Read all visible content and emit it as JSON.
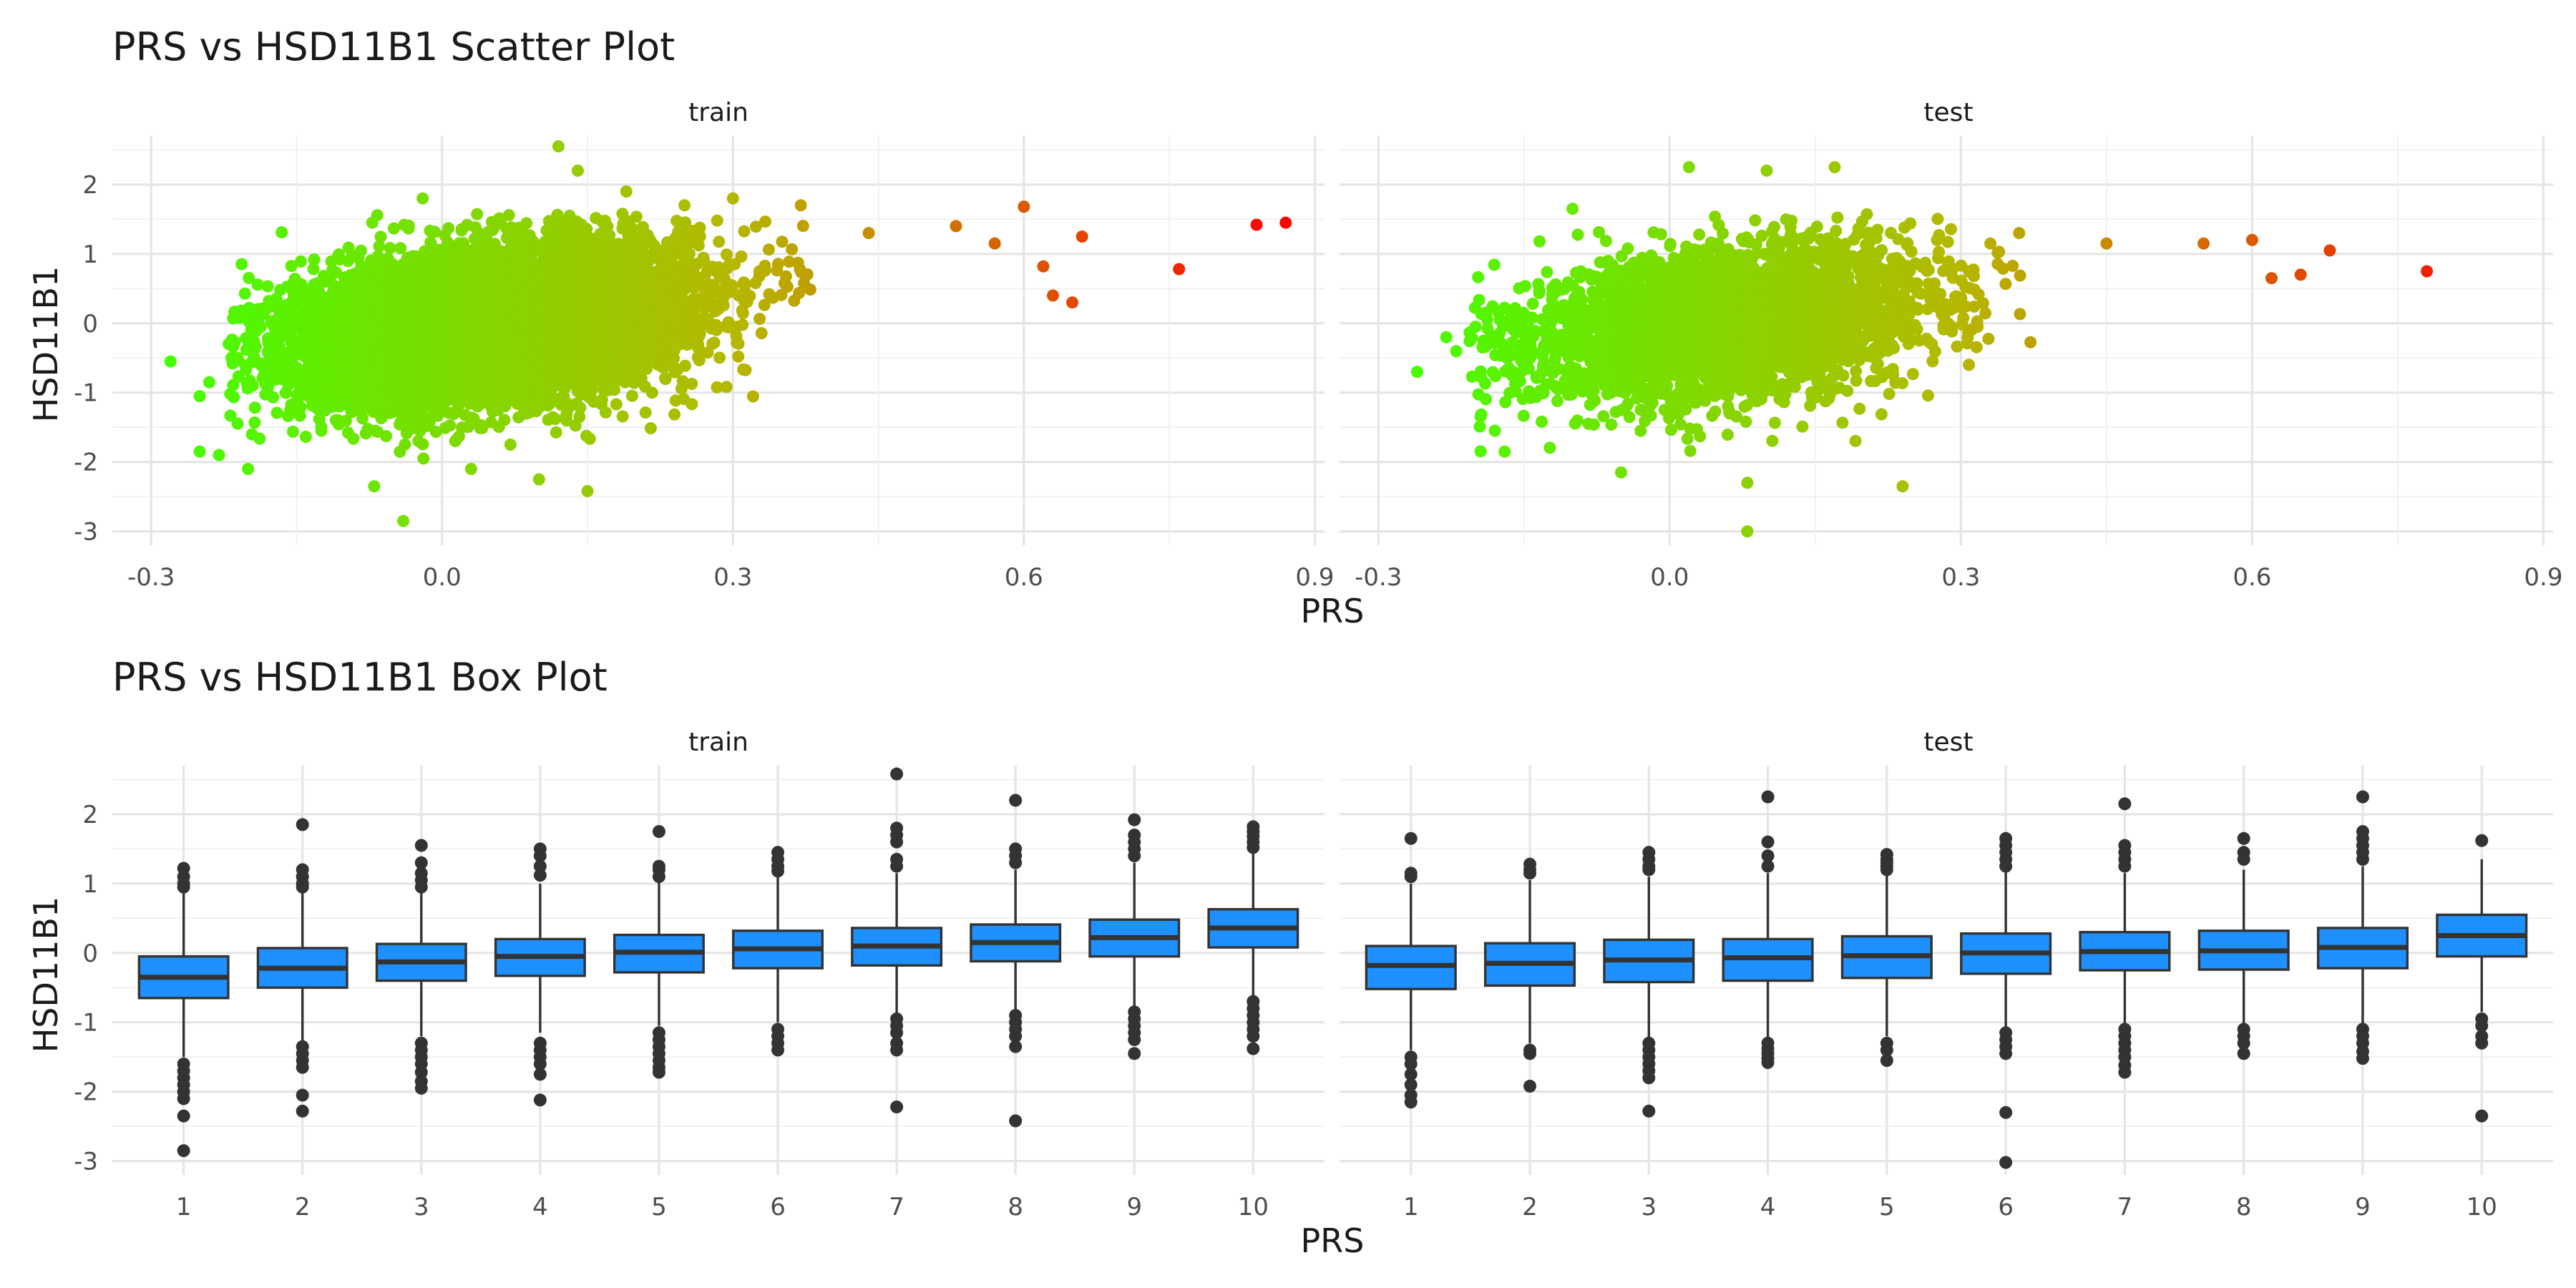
{
  "scatter": {
    "title": "PRS vs HSD11B1 Scatter Plot",
    "xlabel": "PRS",
    "ylabel": "HSD11B1",
    "facets": [
      "train",
      "test"
    ],
    "x_ticks": [
      "-0.3",
      "0.0",
      "0.3",
      "0.6",
      "0.9"
    ],
    "y_ticks": [
      "2",
      "1",
      "0",
      "-1",
      "-2",
      "-3"
    ]
  },
  "box": {
    "title": "PRS vs HSD11B1 Box Plot",
    "xlabel": "PRS",
    "ylabel": "HSD11B1",
    "facets": [
      "train",
      "test"
    ],
    "x_ticks": [
      "1",
      "2",
      "3",
      "4",
      "5",
      "6",
      "7",
      "8",
      "9",
      "10"
    ],
    "y_ticks": [
      "2",
      "1",
      "0",
      "-1",
      "-2",
      "-3"
    ]
  },
  "colors": {
    "low": "#44ff00",
    "mid": "#b5b800",
    "high": "#ff0000",
    "box_fill": "#1e90ff",
    "ink": "#333333"
  },
  "chart_data": [
    {
      "type": "scatter",
      "title": "PRS vs HSD11B1 Scatter Plot",
      "xlabel": "PRS",
      "ylabel": "HSD11B1",
      "xlim": [
        -0.34,
        0.91
      ],
      "ylim": [
        -3.2,
        2.7
      ],
      "color_by": "x",
      "facets": [
        {
          "name": "train",
          "cloud": {
            "x_center": 0.05,
            "x_sd": 0.1,
            "slope": 1.6,
            "resid_sd": 0.52,
            "n": 9000
          },
          "points": [
            [
              -0.28,
              -0.55
            ],
            [
              -0.25,
              -1.05
            ],
            [
              -0.25,
              -1.85
            ],
            [
              -0.23,
              -1.9
            ],
            [
              -0.24,
              -0.85
            ],
            [
              -0.2,
              -2.1
            ],
            [
              -0.22,
              -0.3
            ],
            [
              -0.07,
              -2.35
            ],
            [
              -0.04,
              -2.85
            ],
            [
              -0.02,
              1.8
            ],
            [
              0.03,
              -2.1
            ],
            [
              0.1,
              -2.25
            ],
            [
              0.12,
              2.55
            ],
            [
              0.14,
              2.2
            ],
            [
              0.15,
              -2.42
            ],
            [
              0.19,
              1.9
            ],
            [
              0.25,
              1.7
            ],
            [
              0.3,
              1.8
            ],
            [
              0.37,
              1.7
            ],
            [
              0.44,
              1.3
            ],
            [
              0.53,
              1.4
            ],
            [
              0.57,
              1.15
            ],
            [
              0.6,
              1.68
            ],
            [
              0.62,
              0.82
            ],
            [
              0.63,
              0.4
            ],
            [
              0.65,
              0.3
            ],
            [
              0.66,
              1.25
            ],
            [
              0.76,
              0.78
            ],
            [
              0.84,
              1.42
            ],
            [
              0.87,
              1.45
            ]
          ]
        },
        {
          "name": "test",
          "cloud": {
            "x_center": 0.06,
            "x_sd": 0.1,
            "slope": 1.6,
            "resid_sd": 0.52,
            "n": 3600
          },
          "points": [
            [
              -0.26,
              -0.7
            ],
            [
              -0.23,
              -0.2
            ],
            [
              -0.2,
              -0.05
            ],
            [
              -0.18,
              -1.55
            ],
            [
              -0.17,
              -1.85
            ],
            [
              -0.1,
              1.65
            ],
            [
              -0.05,
              -2.15
            ],
            [
              0.02,
              2.25
            ],
            [
              0.08,
              -2.3
            ],
            [
              0.08,
              -3.0
            ],
            [
              0.1,
              2.2
            ],
            [
              0.17,
              2.25
            ],
            [
              0.24,
              -2.35
            ],
            [
              0.36,
              1.3
            ],
            [
              0.45,
              1.15
            ],
            [
              0.55,
              1.15
            ],
            [
              0.6,
              1.2
            ],
            [
              0.62,
              0.65
            ],
            [
              0.65,
              0.7
            ],
            [
              0.68,
              1.05
            ],
            [
              0.78,
              0.75
            ]
          ]
        }
      ]
    },
    {
      "type": "box",
      "title": "PRS vs HSD11B1 Box Plot",
      "xlabel": "PRS",
      "ylabel": "HSD11B1",
      "categories": [
        "1",
        "2",
        "3",
        "4",
        "5",
        "6",
        "7",
        "8",
        "9",
        "10"
      ],
      "ylim": [
        -3.2,
        2.7
      ],
      "facets": [
        {
          "name": "train",
          "boxes": [
            {
              "q1": -0.65,
              "median": -0.35,
              "q3": -0.05,
              "whisker_low": -1.5,
              "whisker_high": 0.9,
              "outliers": [
                1.22,
                1.1,
                1.0,
                0.95,
                -1.6,
                -1.7,
                -1.8,
                -1.9,
                -2.0,
                -2.1,
                -2.35,
                -2.85
              ]
            },
            {
              "q1": -0.5,
              "median": -0.22,
              "q3": 0.07,
              "whisker_low": -1.3,
              "whisker_high": 0.9,
              "outliers": [
                1.85,
                1.2,
                1.1,
                1.0,
                0.95,
                -1.35,
                -1.45,
                -1.55,
                -1.65,
                -2.05,
                -2.28
              ]
            },
            {
              "q1": -0.4,
              "median": -0.13,
              "q3": 0.13,
              "whisker_low": -1.2,
              "whisker_high": 0.9,
              "outliers": [
                1.55,
                1.3,
                1.15,
                1.05,
                0.95,
                -1.3,
                -1.4,
                -1.5,
                -1.6,
                -1.72,
                -1.85,
                -1.95
              ]
            },
            {
              "q1": -0.33,
              "median": -0.05,
              "q3": 0.2,
              "whisker_low": -1.15,
              "whisker_high": 1.0,
              "outliers": [
                1.5,
                1.4,
                1.25,
                1.12,
                -1.3,
                -1.4,
                -1.5,
                -1.6,
                -1.75,
                -2.12
              ]
            },
            {
              "q1": -0.28,
              "median": 0.01,
              "q3": 0.26,
              "whisker_low": -1.05,
              "whisker_high": 1.05,
              "outliers": [
                1.75,
                1.25,
                1.2,
                1.1,
                -1.15,
                -1.25,
                -1.35,
                -1.45,
                -1.55,
                -1.65,
                -1.72
              ]
            },
            {
              "q1": -0.22,
              "median": 0.06,
              "q3": 0.32,
              "whisker_low": -1.0,
              "whisker_high": 1.1,
              "outliers": [
                1.45,
                1.35,
                1.25,
                1.18,
                -1.1,
                -1.2,
                -1.3,
                -1.4
              ]
            },
            {
              "q1": -0.18,
              "median": 0.1,
              "q3": 0.36,
              "whisker_low": -0.9,
              "whisker_high": 1.15,
              "outliers": [
                2.58,
                1.8,
                1.7,
                1.6,
                1.35,
                1.25,
                -0.95,
                -1.05,
                -1.15,
                -1.3,
                -1.4,
                -2.22
              ]
            },
            {
              "q1": -0.12,
              "median": 0.15,
              "q3": 0.41,
              "whisker_low": -0.85,
              "whisker_high": 1.2,
              "outliers": [
                2.2,
                1.5,
                1.4,
                1.3,
                -0.9,
                -1.0,
                -1.1,
                -1.2,
                -1.35,
                -2.42
              ]
            },
            {
              "q1": -0.05,
              "median": 0.22,
              "q3": 0.48,
              "whisker_low": -0.8,
              "whisker_high": 1.3,
              "outliers": [
                1.92,
                1.7,
                1.6,
                1.5,
                1.4,
                -0.85,
                -0.95,
                -1.05,
                -1.15,
                -1.25,
                -1.45
              ]
            },
            {
              "q1": 0.08,
              "median": 0.36,
              "q3": 0.63,
              "whisker_low": -0.65,
              "whisker_high": 1.45,
              "outliers": [
                1.82,
                1.75,
                1.68,
                1.6,
                1.52,
                -0.7,
                -0.8,
                -0.9,
                -1.0,
                -1.1,
                -1.2,
                -1.38
              ]
            }
          ]
        },
        {
          "name": "test",
          "boxes": [
            {
              "q1": -0.52,
              "median": -0.18,
              "q3": 0.1,
              "whisker_low": -1.4,
              "whisker_high": 1.0,
              "outliers": [
                1.65,
                1.15,
                1.1,
                -1.5,
                -1.6,
                -1.75,
                -1.9,
                -2.05,
                -2.15
              ]
            },
            {
              "q1": -0.47,
              "median": -0.15,
              "q3": 0.14,
              "whisker_low": -1.3,
              "whisker_high": 1.05,
              "outliers": [
                1.28,
                1.2,
                1.15,
                -1.4,
                -1.45,
                -1.92
              ]
            },
            {
              "q1": -0.42,
              "median": -0.1,
              "q3": 0.19,
              "whisker_low": -1.25,
              "whisker_high": 1.1,
              "outliers": [
                1.45,
                1.35,
                1.25,
                1.2,
                -1.3,
                -1.4,
                -1.5,
                -1.6,
                -1.7,
                -1.8,
                -2.28
              ]
            },
            {
              "q1": -0.4,
              "median": -0.07,
              "q3": 0.2,
              "whisker_low": -1.25,
              "whisker_high": 1.15,
              "outliers": [
                2.25,
                1.6,
                1.4,
                1.25,
                -1.3,
                -1.38,
                -1.45,
                -1.52,
                -1.58
              ]
            },
            {
              "q1": -0.36,
              "median": -0.04,
              "q3": 0.24,
              "whisker_low": -1.2,
              "whisker_high": 1.15,
              "outliers": [
                1.42,
                1.35,
                1.3,
                1.25,
                1.2,
                -1.3,
                -1.4,
                -1.55
              ]
            },
            {
              "q1": -0.3,
              "median": 0.0,
              "q3": 0.28,
              "whisker_low": -1.1,
              "whisker_high": 1.2,
              "outliers": [
                1.65,
                1.55,
                1.45,
                1.35,
                1.25,
                -1.15,
                -1.25,
                -1.35,
                -1.45,
                -2.3,
                -3.02
              ]
            },
            {
              "q1": -0.25,
              "median": 0.02,
              "q3": 0.3,
              "whisker_low": -1.05,
              "whisker_high": 1.15,
              "outliers": [
                2.15,
                1.55,
                1.45,
                1.35,
                1.25,
                -1.1,
                -1.2,
                -1.3,
                -1.4,
                -1.5,
                -1.62,
                -1.72
              ]
            },
            {
              "q1": -0.24,
              "median": 0.03,
              "q3": 0.32,
              "whisker_low": -1.05,
              "whisker_high": 1.2,
              "outliers": [
                1.65,
                1.45,
                1.35,
                -1.1,
                -1.2,
                -1.3,
                -1.45
              ]
            },
            {
              "q1": -0.22,
              "median": 0.08,
              "q3": 0.36,
              "whisker_low": -1.05,
              "whisker_high": 1.25,
              "outliers": [
                2.25,
                1.75,
                1.65,
                1.55,
                1.45,
                1.35,
                -1.1,
                -1.2,
                -1.3,
                -1.42,
                -1.52
              ]
            },
            {
              "q1": -0.05,
              "median": 0.25,
              "q3": 0.55,
              "whisker_low": -0.85,
              "whisker_high": 1.35,
              "outliers": [
                1.62,
                -0.95,
                -1.05,
                -1.2,
                -1.3,
                -2.35
              ]
            }
          ]
        }
      ]
    }
  ]
}
